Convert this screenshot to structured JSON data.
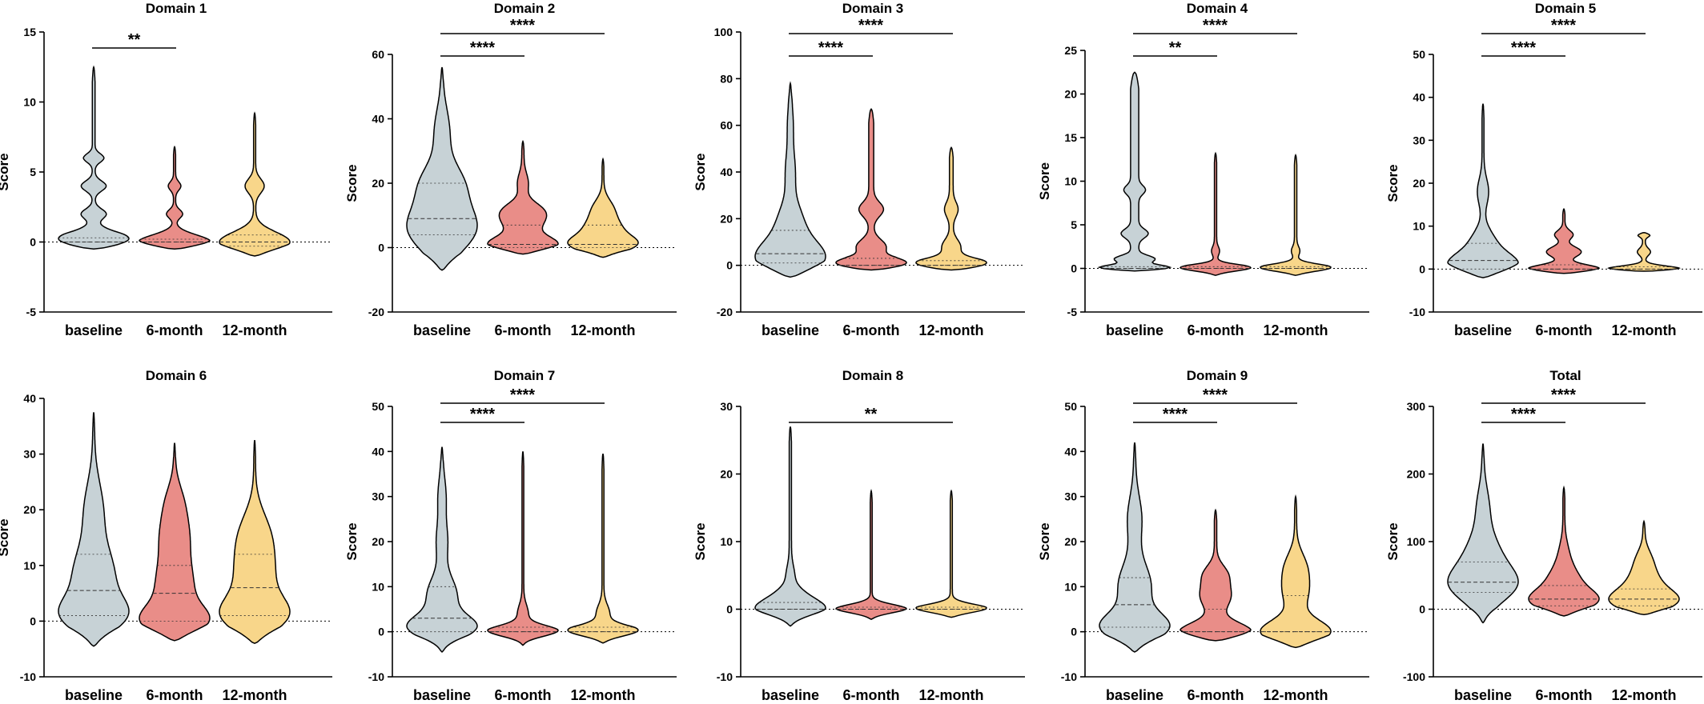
{
  "colors": {
    "baseline": "#c7d2d6",
    "6-month": "#e98d88",
    "12-month": "#f8d68a"
  },
  "chart_data": [
    {
      "type": "violin",
      "title": "Domain 1",
      "ylabel": "Score",
      "ylim": [
        -5,
        15
      ],
      "yticks": [
        -5,
        0,
        5,
        10,
        15
      ],
      "categories": [
        "baseline",
        "6-month",
        "12-month"
      ],
      "violins": [
        {
          "min": -0.5,
          "max": 12.5,
          "median": 0,
          "q1": 0,
          "q3": 0.3,
          "lumps": [
            [
              0,
              1.0,
              0.6
            ],
            [
              2,
              0.25,
              0.35
            ],
            [
              4,
              0.25,
              0.35
            ],
            [
              6,
              0.2,
              0.3
            ]
          ],
          "stem": 0.03
        },
        {
          "min": -0.5,
          "max": 6.8,
          "median": 0,
          "q1": 0,
          "q3": 0.2,
          "lumps": [
            [
              0,
              1.0,
              0.5
            ],
            [
              2,
              0.2,
              0.3
            ],
            [
              4,
              0.15,
              0.3
            ]
          ],
          "stem": 0.03
        },
        {
          "min": -1,
          "max": 9.2,
          "median": 0,
          "q1": -0.3,
          "q3": 0.5,
          "lumps": [
            [
              0,
              1.0,
              0.7
            ],
            [
              4,
              0.25,
              0.5
            ]
          ],
          "stem": 0.03
        }
      ],
      "significance": [
        {
          "from": 0,
          "to": 1,
          "label": "**"
        }
      ]
    },
    {
      "type": "violin",
      "title": "Domain 2",
      "ylabel": "Score",
      "ylim": [
        -20,
        60
      ],
      "yticks": [
        -20,
        0,
        20,
        40,
        60
      ],
      "categories": [
        "baseline",
        "6-month",
        "12-month"
      ],
      "violins": [
        {
          "min": -7,
          "max": 56,
          "median": 9,
          "q1": 4,
          "q3": 20,
          "lumps": [
            [
              6,
              1.0,
              7
            ],
            [
              20,
              0.55,
              6
            ],
            [
              36,
              0.2,
              7
            ]
          ],
          "stem": 0.03
        },
        {
          "min": -2,
          "max": 33,
          "median": 1,
          "q1": 0,
          "q3": 7,
          "lumps": [
            [
              1,
              0.9,
              2.5
            ],
            [
              8,
              0.45,
              3
            ],
            [
              12,
              0.35,
              2.5
            ],
            [
              20,
              0.12,
              3
            ]
          ],
          "stem": 0.03
        },
        {
          "min": -3,
          "max": 27.5,
          "median": 1,
          "q1": 0,
          "q3": 7,
          "lumps": [
            [
              1,
              1.0,
              2.5
            ],
            [
              6,
              0.5,
              3
            ],
            [
              12,
              0.3,
              3
            ]
          ],
          "stem": 0.03
        }
      ],
      "significance": [
        {
          "from": 0,
          "to": 1,
          "label": "****"
        },
        {
          "from": 0,
          "to": 2,
          "label": "****"
        }
      ]
    },
    {
      "type": "violin",
      "title": "Domain 3",
      "ylabel": "Score",
      "ylim": [
        -20,
        100
      ],
      "yticks": [
        -20,
        0,
        20,
        40,
        60,
        80,
        100
      ],
      "categories": [
        "baseline",
        "6-month",
        "12-month"
      ],
      "violins": [
        {
          "min": -5,
          "max": 78,
          "median": 5,
          "q1": 1,
          "q3": 15,
          "lumps": [
            [
              3,
              1.0,
              7
            ],
            [
              18,
              0.35,
              8
            ],
            [
              40,
              0.12,
              8
            ],
            [
              60,
              0.06,
              8
            ]
          ],
          "stem": 0.03
        },
        {
          "min": -2,
          "max": 67,
          "median": 0,
          "q1": 0,
          "q3": 3,
          "lumps": [
            [
              0,
              0.6,
              2.5
            ],
            [
              8,
              0.15,
              3
            ],
            [
              24,
              0.12,
              3
            ]
          ],
          "stem": 0.03
        },
        {
          "min": -2,
          "max": 50.5,
          "median": 0,
          "q1": 0,
          "q3": 2,
          "lumps": [
            [
              0,
              0.7,
              2.5
            ],
            [
              8,
              0.12,
              3
            ],
            [
              24,
              0.08,
              3
            ]
          ],
          "stem": 0.03
        }
      ],
      "significance": [
        {
          "from": 0,
          "to": 1,
          "label": "****"
        },
        {
          "from": 0,
          "to": 2,
          "label": "****"
        }
      ]
    },
    {
      "type": "violin",
      "title": "Domain 4",
      "ylabel": "Score",
      "ylim": [
        -5,
        25
      ],
      "yticks": [
        -5,
        0,
        5,
        10,
        15,
        20,
        25
      ],
      "categories": [
        "baseline",
        "6-month",
        "12-month"
      ],
      "violins": [
        {
          "min": -0.3,
          "max": 22.5,
          "median": 0,
          "q1": 0,
          "q3": 0.2,
          "lumps": [
            [
              0,
              0.55,
              0.3
            ],
            [
              1,
              0.15,
              0.4
            ],
            [
              4,
              0.07,
              0.5
            ],
            [
              9,
              0.05,
              0.5
            ]
          ],
          "stem": 0.03
        },
        {
          "min": -0.8,
          "max": 13.2,
          "median": 0,
          "q1": 0,
          "q3": 0.2,
          "lumps": [
            [
              0,
              0.7,
              0.4
            ],
            [
              2,
              0.05,
              0.5
            ]
          ],
          "stem": 0.02
        },
        {
          "min": -0.8,
          "max": 13,
          "median": 0,
          "q1": 0,
          "q3": 0.2,
          "lumps": [
            [
              0,
              0.65,
              0.45
            ],
            [
              2,
              0.05,
              0.5
            ]
          ],
          "stem": 0.02
        }
      ],
      "significance": [
        {
          "from": 0,
          "to": 1,
          "label": "**"
        },
        {
          "from": 0,
          "to": 2,
          "label": "****"
        }
      ]
    },
    {
      "type": "violin",
      "title": "Domain 5",
      "ylabel": "Score",
      "ylim": [
        -10,
        50
      ],
      "yticks": [
        -10,
        0,
        10,
        20,
        30,
        40,
        50
      ],
      "categories": [
        "baseline",
        "6-month",
        "12-month"
      ],
      "violins": [
        {
          "min": -2,
          "max": 38.5,
          "median": 2,
          "q1": 0,
          "q3": 6,
          "lumps": [
            [
              1,
              1.0,
              2.5
            ],
            [
              6,
              0.35,
              3
            ],
            [
              18,
              0.15,
              3
            ]
          ],
          "stem": 0.03
        },
        {
          "min": -1,
          "max": 14,
          "median": 0,
          "q1": 0,
          "q3": 1,
          "lumps": [
            [
              0,
              0.65,
              1
            ],
            [
              4,
              0.3,
              1.2
            ],
            [
              8,
              0.15,
              1
            ]
          ],
          "stem": 0.02
        },
        {
          "min": -0.5,
          "max": 8.5,
          "median": 0,
          "q1": 0,
          "q3": 0.5,
          "lumps": [
            [
              0,
              0.55,
              0.7
            ],
            [
              4,
              0.08,
              0.8
            ],
            [
              8,
              0.08,
              0.5
            ]
          ],
          "stem": 0.02
        }
      ],
      "significance": [
        {
          "from": 0,
          "to": 1,
          "label": "****"
        },
        {
          "from": 0,
          "to": 2,
          "label": "****"
        }
      ]
    },
    {
      "type": "violin",
      "title": "Domain 6",
      "ylabel": "Score",
      "ylim": [
        -10,
        40
      ],
      "yticks": [
        -10,
        0,
        10,
        20,
        30,
        40
      ],
      "categories": [
        "baseline",
        "6-month",
        "12-month"
      ],
      "violins": [
        {
          "min": -4.5,
          "max": 37.5,
          "median": 5.5,
          "q1": 1,
          "q3": 12,
          "lumps": [
            [
              1,
              0.95,
              3
            ],
            [
              8,
              0.7,
              5
            ],
            [
              20,
              0.3,
              5
            ]
          ],
          "stem": 0.03
        },
        {
          "min": -3.5,
          "max": 32,
          "median": 5,
          "q1": 0,
          "q3": 10,
          "lumps": [
            [
              0,
              1.0,
              2.5
            ],
            [
              6,
              0.7,
              5
            ],
            [
              16,
              0.45,
              4
            ],
            [
              22,
              0.2,
              3
            ]
          ],
          "stem": 0.03
        },
        {
          "min": -4,
          "max": 32.5,
          "median": 6,
          "q1": 1,
          "q3": 12,
          "lumps": [
            [
              1,
              1.0,
              3
            ],
            [
              8,
              0.65,
              5
            ],
            [
              16,
              0.4,
              4
            ]
          ],
          "stem": 0.03
        }
      ],
      "significance": []
    },
    {
      "type": "violin",
      "title": "Domain 7",
      "ylabel": "Score",
      "ylim": [
        -10,
        50
      ],
      "yticks": [
        -10,
        0,
        10,
        20,
        30,
        40,
        50
      ],
      "categories": [
        "baseline",
        "6-month",
        "12-month"
      ],
      "violins": [
        {
          "min": -4.5,
          "max": 41,
          "median": 3,
          "q1": 0,
          "q3": 10,
          "lumps": [
            [
              1,
              1.0,
              2.5
            ],
            [
              8,
              0.45,
              4
            ],
            [
              20,
              0.15,
              4
            ],
            [
              30,
              0.1,
              4
            ]
          ],
          "stem": 0.03
        },
        {
          "min": -3,
          "max": 40,
          "median": 0,
          "q1": 0,
          "q3": 1,
          "lumps": [
            [
              0,
              0.8,
              1.3
            ],
            [
              4,
              0.1,
              2
            ]
          ],
          "stem": 0.02
        },
        {
          "min": -2.5,
          "max": 39.5,
          "median": 0,
          "q1": 0,
          "q3": 1,
          "lumps": [
            [
              0,
              0.8,
              1.3
            ],
            [
              4,
              0.12,
              2
            ]
          ],
          "stem": 0.02
        }
      ],
      "significance": [
        {
          "from": 0,
          "to": 1,
          "label": "****"
        },
        {
          "from": 0,
          "to": 2,
          "label": "****"
        }
      ]
    },
    {
      "type": "violin",
      "title": "Domain 8",
      "ylabel": "Score",
      "ylim": [
        -10,
        30
      ],
      "yticks": [
        -10,
        0,
        10,
        20,
        30
      ],
      "categories": [
        "baseline",
        "6-month",
        "12-month"
      ],
      "violins": [
        {
          "min": -2.5,
          "max": 27,
          "median": 0,
          "q1": 0,
          "q3": 1,
          "lumps": [
            [
              0,
              0.8,
              1.2
            ],
            [
              2,
              0.3,
              1.2
            ],
            [
              5,
              0.08,
              1.5
            ]
          ],
          "stem": 0.03
        },
        {
          "min": -1.5,
          "max": 17.5,
          "median": 0,
          "q1": 0,
          "q3": 0.3,
          "lumps": [
            [
              0,
              0.75,
              0.7
            ]
          ],
          "stem": 0.02
        },
        {
          "min": -1.2,
          "max": 17.5,
          "median": 0,
          "q1": 0,
          "q3": 0.3,
          "lumps": [
            [
              0,
              0.7,
              0.7
            ]
          ],
          "stem": 0.02
        }
      ],
      "significance": [
        {
          "from": 0,
          "to": 2,
          "label": "**"
        }
      ]
    },
    {
      "type": "violin",
      "title": "Domain 9",
      "ylabel": "Score",
      "ylim": [
        -10,
        50
      ],
      "yticks": [
        -10,
        0,
        10,
        20,
        30,
        40,
        50
      ],
      "categories": [
        "baseline",
        "6-month",
        "12-month"
      ],
      "violins": [
        {
          "min": -4.5,
          "max": 42,
          "median": 6,
          "q1": 1,
          "q3": 12,
          "lumps": [
            [
              1,
              1.0,
              3
            ],
            [
              10,
              0.5,
              5
            ],
            [
              25,
              0.2,
              5
            ]
          ],
          "stem": 0.03
        },
        {
          "min": -2,
          "max": 27,
          "median": 0,
          "q1": 0,
          "q3": 5,
          "lumps": [
            [
              0,
              0.85,
              2
            ],
            [
              8,
              0.35,
              3
            ],
            [
              13,
              0.2,
              2
            ]
          ],
          "stem": 0.03
        },
        {
          "min": -3.5,
          "max": 30,
          "median": 0,
          "q1": 0,
          "q3": 8,
          "lumps": [
            [
              0,
              1.0,
              2.5
            ],
            [
              9,
              0.35,
              4
            ],
            [
              15,
              0.2,
              3
            ]
          ],
          "stem": 0.03
        }
      ],
      "significance": [
        {
          "from": 0,
          "to": 1,
          "label": "****"
        },
        {
          "from": 0,
          "to": 2,
          "label": "****"
        }
      ]
    },
    {
      "type": "violin",
      "title": "Total",
      "ylabel": "Score",
      "ylim": [
        -100,
        300
      ],
      "yticks": [
        -100,
        0,
        100,
        200,
        300
      ],
      "categories": [
        "baseline",
        "6-month",
        "12-month"
      ],
      "violins": [
        {
          "min": -20,
          "max": 245,
          "median": 40,
          "q1": 25,
          "q3": 70,
          "lumps": [
            [
              35,
              1.0,
              25
            ],
            [
              80,
              0.5,
              30
            ],
            [
              150,
              0.18,
              30
            ]
          ],
          "stem": 0.03
        },
        {
          "min": -10,
          "max": 180,
          "median": 15,
          "q1": 5,
          "q3": 35,
          "lumps": [
            [
              12,
              0.9,
              15
            ],
            [
              40,
              0.45,
              20
            ],
            [
              80,
              0.12,
              20
            ]
          ],
          "stem": 0.03
        },
        {
          "min": -8,
          "max": 130,
          "median": 15,
          "q1": 5,
          "q3": 30,
          "lumps": [
            [
              12,
              0.85,
              15
            ],
            [
              40,
              0.4,
              20
            ],
            [
              75,
              0.15,
              15
            ]
          ],
          "stem": 0.03
        }
      ],
      "significance": [
        {
          "from": 0,
          "to": 1,
          "label": "****"
        },
        {
          "from": 0,
          "to": 2,
          "label": "****"
        }
      ]
    }
  ]
}
